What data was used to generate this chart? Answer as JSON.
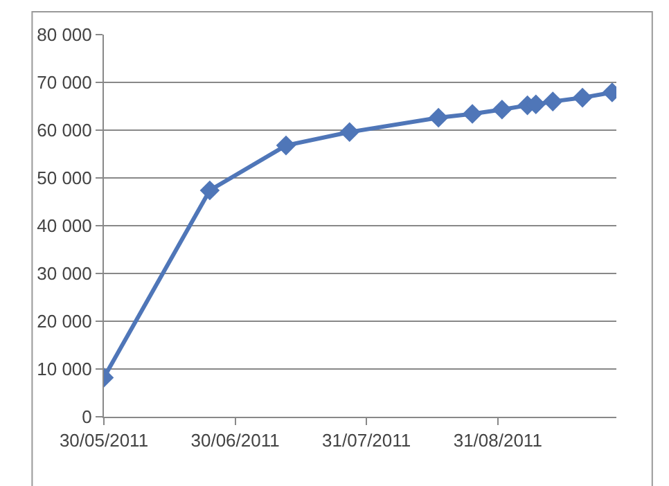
{
  "chart_data": {
    "type": "line",
    "marker": "diamond",
    "line_style": "solid",
    "grid": "y",
    "legend": false,
    "x": [
      "2011-05-30",
      "2011-06-24",
      "2011-07-12",
      "2011-07-27",
      "2011-08-17",
      "2011-08-25",
      "2011-09-01",
      "2011-09-07",
      "2011-09-09",
      "2011-09-13",
      "2011-09-20",
      "2011-09-27"
    ],
    "series": [
      {
        "color": "#4f76b8",
        "values": [
          8200,
          47400,
          56800,
          59600,
          62600,
          63400,
          64300,
          65200,
          65400,
          66000,
          66800,
          67900
        ]
      }
    ],
    "xlim": [
      "2011-05-30",
      "2011-09-28"
    ],
    "xticks": [
      {
        "value": "2011-05-30",
        "label": "30/05/2011"
      },
      {
        "value": "2011-06-30",
        "label": "30/06/2011"
      },
      {
        "value": "2011-07-31",
        "label": "31/07/2011"
      },
      {
        "value": "2011-08-31",
        "label": "31/08/2011"
      }
    ],
    "ylim": [
      0,
      80000
    ],
    "yticks": [
      {
        "value": 0,
        "label": "0"
      },
      {
        "value": 10000,
        "label": "10 000"
      },
      {
        "value": 20000,
        "label": "20 000"
      },
      {
        "value": 30000,
        "label": "30 000"
      },
      {
        "value": 40000,
        "label": "40 000"
      },
      {
        "value": 50000,
        "label": "50 000"
      },
      {
        "value": 60000,
        "label": "60 000"
      },
      {
        "value": 70000,
        "label": "70 000"
      },
      {
        "value": 80000,
        "label": "80 000"
      }
    ]
  }
}
